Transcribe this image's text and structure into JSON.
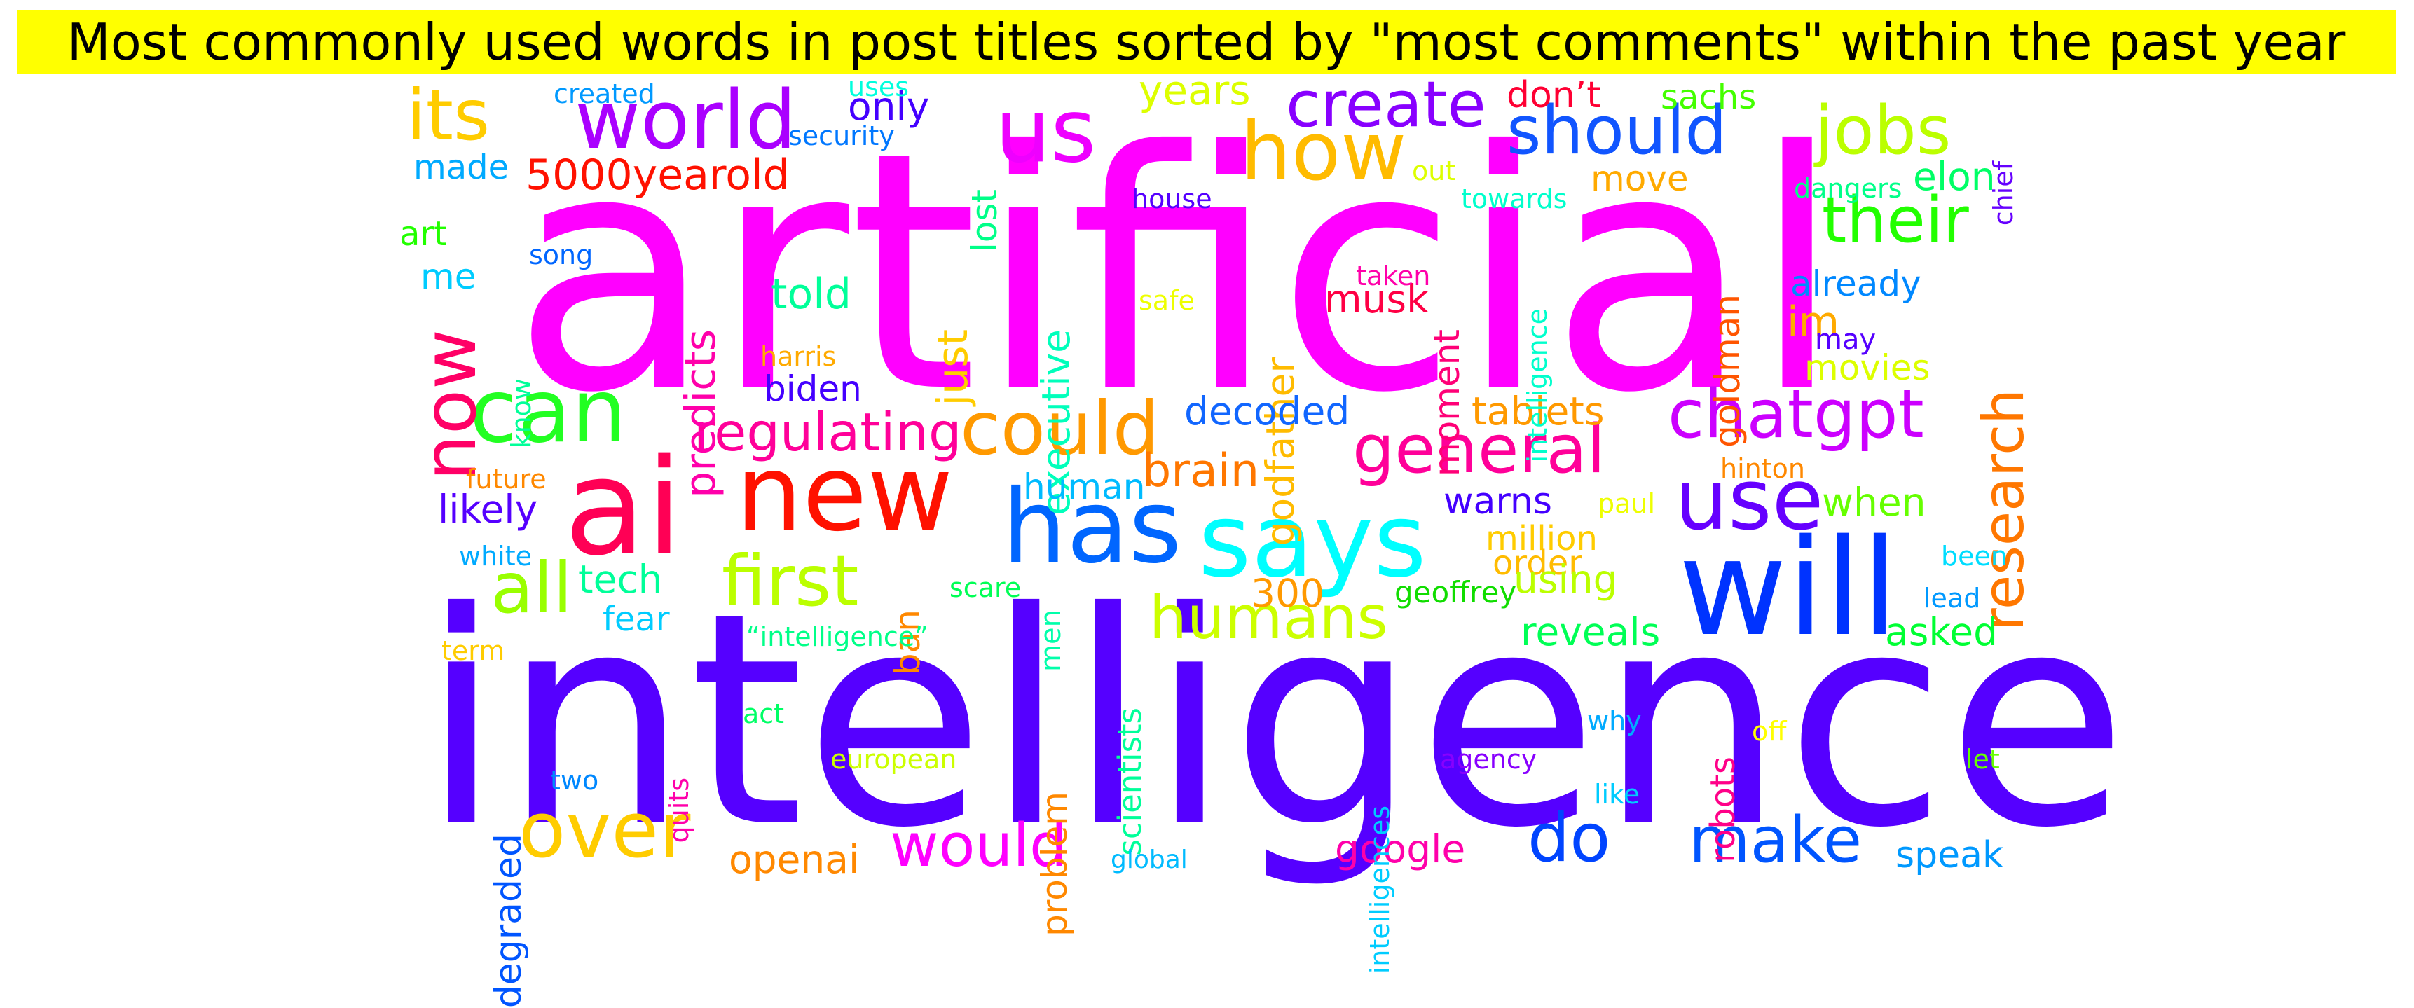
{
  "title": "Most commonly used words in post titles sorted by \"most comments\" within the past year",
  "words": [
    {
      "text": "artificial",
      "color": "#ff00ff"
    },
    {
      "text": "intelligence",
      "color": "#5500ff"
    },
    {
      "text": "ai",
      "color": "#ff0055"
    },
    {
      "text": "new",
      "color": "#ff1100"
    },
    {
      "text": "will",
      "color": "#0033ff"
    },
    {
      "text": "says",
      "color": "#00ffff"
    },
    {
      "text": "has",
      "color": "#0066ff"
    },
    {
      "text": "us",
      "color": "#ee00ff"
    },
    {
      "text": "world",
      "color": "#aa00ff"
    },
    {
      "text": "how",
      "color": "#ffbb00"
    },
    {
      "text": "can",
      "color": "#22ff22"
    },
    {
      "text": "should",
      "color": "#1155ff"
    },
    {
      "text": "jobs",
      "color": "#bbff00"
    },
    {
      "text": "create",
      "color": "#8800ff"
    },
    {
      "text": "its",
      "color": "#ffcc00"
    },
    {
      "text": "general",
      "color": "#ff0099"
    },
    {
      "text": "use",
      "color": "#6600ff"
    },
    {
      "text": "could",
      "color": "#ff9900"
    },
    {
      "text": "chatgpt",
      "color": "#cc00ff"
    },
    {
      "text": "over",
      "color": "#ffcc00"
    },
    {
      "text": "make",
      "color": "#0055ff"
    },
    {
      "text": "do",
      "color": "#0044ff"
    },
    {
      "text": "would",
      "color": "#ff00ff"
    },
    {
      "text": "first",
      "color": "#bbff00"
    },
    {
      "text": "all",
      "color": "#99ff00"
    },
    {
      "text": "their",
      "color": "#22ff00"
    },
    {
      "text": "humans",
      "color": "#ccff00"
    },
    {
      "text": "now",
      "color": "#ff0066"
    },
    {
      "text": "research",
      "color": "#ff7700"
    },
    {
      "text": "regulating",
      "color": "#ff0099"
    },
    {
      "text": "5000yearold",
      "color": "#ff1100"
    },
    {
      "text": "im",
      "color": "#ffaa00"
    },
    {
      "text": "told",
      "color": "#00ff99"
    },
    {
      "text": "predicts",
      "color": "#ff00aa"
    },
    {
      "text": "just",
      "color": "#ffcc00"
    },
    {
      "text": "executive",
      "color": "#00ffbb"
    },
    {
      "text": "godfather",
      "color": "#ffbb00"
    },
    {
      "text": "moment",
      "color": "#ff0077"
    },
    {
      "text": "goldman",
      "color": "#ff5500"
    },
    {
      "text": "musk",
      "color": "#ff0044"
    },
    {
      "text": "brain",
      "color": "#ff7700"
    },
    {
      "text": "decoded",
      "color": "#1166ff"
    },
    {
      "text": "tablets",
      "color": "#ff9900"
    },
    {
      "text": "warns",
      "color": "#4400ff"
    },
    {
      "text": "when",
      "color": "#66ff00"
    },
    {
      "text": "human",
      "color": "#00bbff"
    },
    {
      "text": "likely",
      "color": "#5500ff"
    },
    {
      "text": "tech",
      "color": "#00ff99"
    },
    {
      "text": "fear",
      "color": "#00ccff"
    },
    {
      "text": "biden",
      "color": "#4400ff"
    },
    {
      "text": "only",
      "color": "#4400ff"
    },
    {
      "text": "years",
      "color": "#ddff00"
    },
    {
      "text": "don’t",
      "color": "#ff0033"
    },
    {
      "text": "sachs",
      "color": "#44ff00"
    },
    {
      "text": "move",
      "color": "#ffaa00"
    },
    {
      "text": "elon",
      "color": "#00ff66"
    },
    {
      "text": "already",
      "color": "#0088ff"
    },
    {
      "text": "movies",
      "color": "#ddff00"
    },
    {
      "text": "may",
      "color": "#5500ff"
    },
    {
      "text": "made",
      "color": "#00aaff"
    },
    {
      "text": "me",
      "color": "#00ccff"
    },
    {
      "text": "art",
      "color": "#22ff00"
    },
    {
      "text": "lost",
      "color": "#00ff88"
    },
    {
      "text": "million",
      "color": "#ffcc00"
    },
    {
      "text": "order",
      "color": "#ffbb00"
    },
    {
      "text": "using",
      "color": "#bbff00"
    },
    {
      "text": "reveals",
      "color": "#00ff55"
    },
    {
      "text": "asked",
      "color": "#00ff33"
    },
    {
      "text": "300",
      "color": "#ff9900"
    },
    {
      "text": "geoffrey",
      "color": "#11dd00"
    },
    {
      "text": "ban",
      "color": "#ff8800"
    },
    {
      "text": "scare",
      "color": "#00ff55"
    },
    {
      "text": "men",
      "color": "#00ffaa"
    },
    {
      "text": "scientists",
      "color": "#00ff99"
    },
    {
      "text": "problem",
      "color": "#ff8800"
    },
    {
      "text": "robots",
      "color": "#ff0088"
    },
    {
      "text": "google",
      "color": "#ff00aa"
    },
    {
      "text": "openai",
      "color": "#ff8800"
    },
    {
      "text": "speak",
      "color": "#0099ff"
    },
    {
      "text": "degraded",
      "color": "#0055ff"
    },
    {
      "text": "“intelligence”",
      "color": "#00ff88"
    },
    {
      "text": "intelligences",
      "color": "#00ccff"
    },
    {
      "text": "agency",
      "color": "#8800ff"
    },
    {
      "text": "european",
      "color": "#ccff00"
    },
    {
      "text": "global",
      "color": "#00bbff"
    },
    {
      "text": "two",
      "color": "#0088ff"
    },
    {
      "text": "quits",
      "color": "#ff00aa"
    },
    {
      "text": "act",
      "color": "#00ff66"
    },
    {
      "text": "term",
      "color": "#ffcc00"
    },
    {
      "text": "why",
      "color": "#00aaff"
    },
    {
      "text": "like",
      "color": "#00ccff"
    },
    {
      "text": "off",
      "color": "#ffff00"
    },
    {
      "text": "let",
      "color": "#66ff00"
    },
    {
      "text": "white",
      "color": "#00aaff"
    },
    {
      "text": "future",
      "color": "#ff8800"
    },
    {
      "text": "paul",
      "color": "#eeff00"
    },
    {
      "text": "hinton",
      "color": "#ff8800"
    },
    {
      "text": "been",
      "color": "#00ddff"
    },
    {
      "text": "lead",
      "color": "#0099ff"
    },
    {
      "text": "harris",
      "color": "#ffaa00"
    },
    {
      "text": "know",
      "color": "#00ff99"
    },
    {
      "text": "safe",
      "color": "#eeff00"
    },
    {
      "text": "taken",
      "color": "#ff00aa"
    },
    {
      "text": "intelligence",
      "color": "#00ffcc"
    },
    {
      "text": "house",
      "color": "#5500ff"
    },
    {
      "text": "towards",
      "color": "#00ffcc"
    },
    {
      "text": "out",
      "color": "#ddff00"
    },
    {
      "text": "dangers",
      "color": "#00ff88"
    },
    {
      "text": "chief",
      "color": "#6600ff"
    },
    {
      "text": "song",
      "color": "#0066ff"
    },
    {
      "text": "created",
      "color": "#0099ff"
    },
    {
      "text": "uses",
      "color": "#00ffdd"
    },
    {
      "text": "security",
      "color": "#0077ff"
    }
  ]
}
